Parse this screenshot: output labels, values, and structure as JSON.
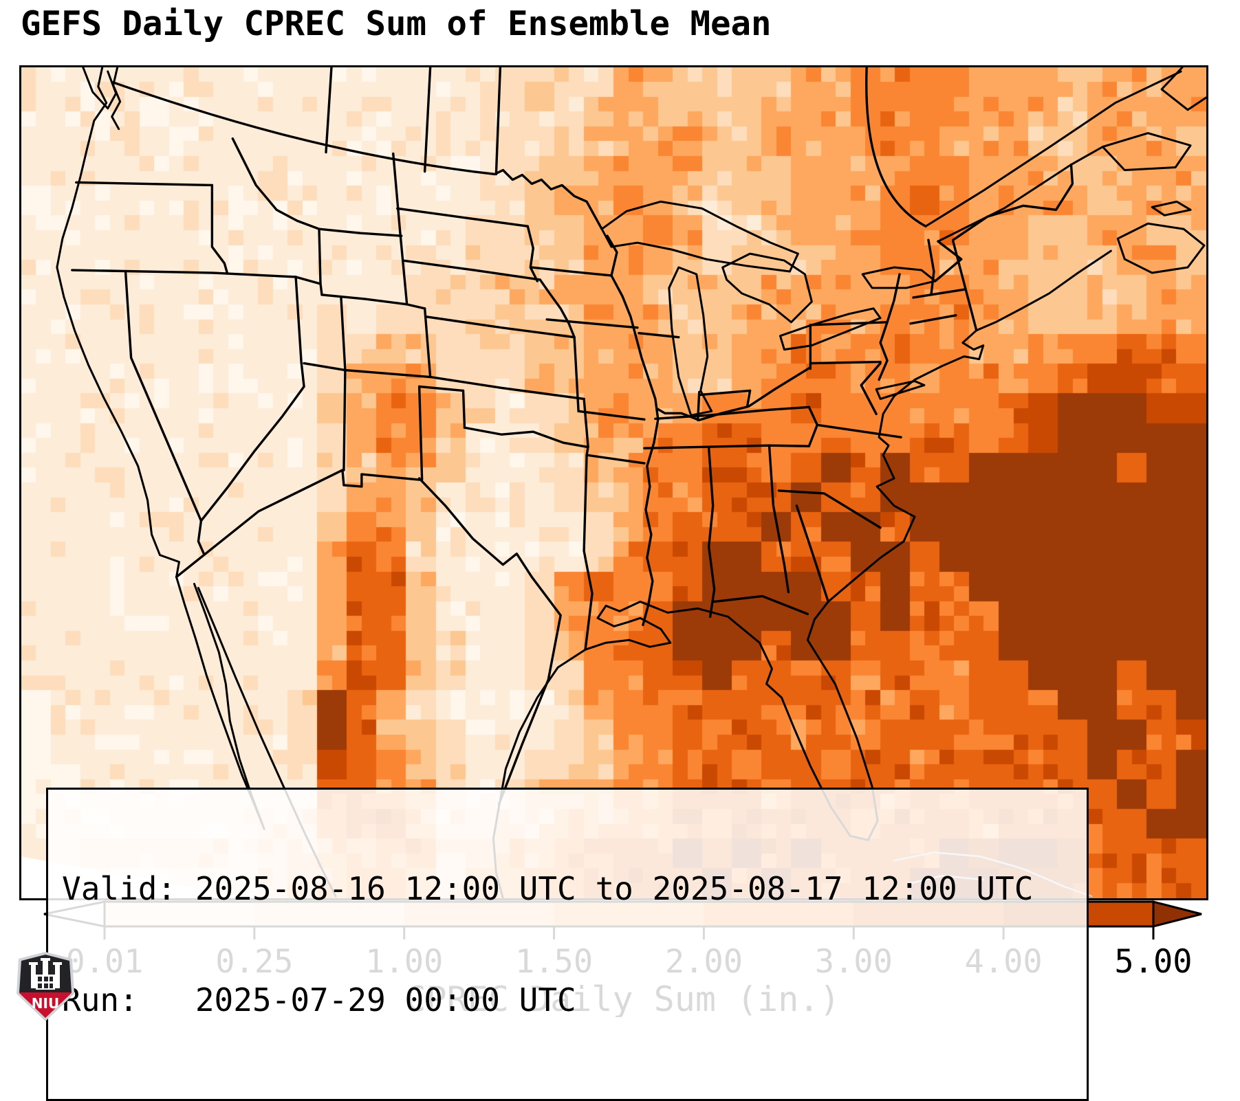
{
  "figure": {
    "title": "GEFS Daily CPREC Sum of Ensemble Mean",
    "info_box": {
      "valid_line": "Valid: 2025-08-16 12:00 UTC to 2025-08-17 12:00 UTC",
      "run_line": "Run:   2025-07-29 00:00 UTC"
    },
    "colorbar": {
      "label": "CPREC Daily Sum (in.)",
      "ticks": [
        "0.01",
        "0.25",
        "1.00",
        "1.50",
        "2.00",
        "3.00",
        "4.00",
        "5.00"
      ],
      "under_color": "#ffffff",
      "over_color": "#8f3104",
      "border_color": "#000000"
    },
    "logo": {
      "org_text": "NIU"
    }
  },
  "chart_data": {
    "type": "heatmap",
    "title": "GEFS Daily CPREC Sum of Ensemble Mean",
    "colorbar_label": "CPREC Daily Sum (in.)",
    "units": "in.",
    "valid": "2025-08-16 12:00 UTC to 2025-08-17 12:00 UTC",
    "run": "2025-07-29 00:00 UTC",
    "levels_in": [
      0.01,
      0.25,
      1.0,
      1.5,
      2.0,
      3.0,
      4.0,
      5.0
    ],
    "palette": [
      "#fff6ec",
      "#fdecd7",
      "#fdddbb",
      "#fdc791",
      "#fda85e",
      "#fa8532",
      "#e96410",
      "#ca4902",
      "#9c3a08"
    ],
    "grid_legend": "digit = precipitation color level: 0 <0.01in, 1:0.01-0.25, 2:0.25-1.00, 3:1.00-1.50, 4:1.50-2.00, 5:2.00-3.00, 6:3.00-4.00, 7:4.00-5.00, 8 >5.00in",
    "grid_rows": [
      "1111111111111112222244333344555544434434",
      "1111011111111112222344333444555544434444",
      "1111101111111111223344433444455444334443",
      "1111111111111111233444433344445544433444",
      "0111111111111111234454323344456544443444",
      "1011111111111112233445422344555544334433",
      "1111111111111212233444323334455444333443",
      "1111111111111222334443333444445544333344",
      "1111111111112222333444334445455544333444",
      "1111111111223322233444334454555544455665",
      "1111111111234422233444334555554554567766",
      "1111111111345532123444455565555556788877",
      "1111111111245531123445566556556656788888",
      "1111111111234431112345566568686688888688",
      "1111111111244311112345566686688888888888",
      "1111111111355311111245666868868888888888",
      "1111111111465211111256688666886888888888",
      "1111111111466311125655688886686688888888",
      "1111111111466311124556888888686568888888",
      "1111111111466321123566888688665668888888",
      "1111111111566321122556686666565566888688",
      "0111111112864211112455666566656566688668",
      "0111111112864321112355656656566656668866",
      "0011111112765321122345665665665666668668",
      "0011111111665421233455666566656566666868",
      "0111111122566422334455656666566656666688",
      "1122222223455533445566868686666878876666",
      "0000011123455424455666686866668887766666"
    ]
  }
}
